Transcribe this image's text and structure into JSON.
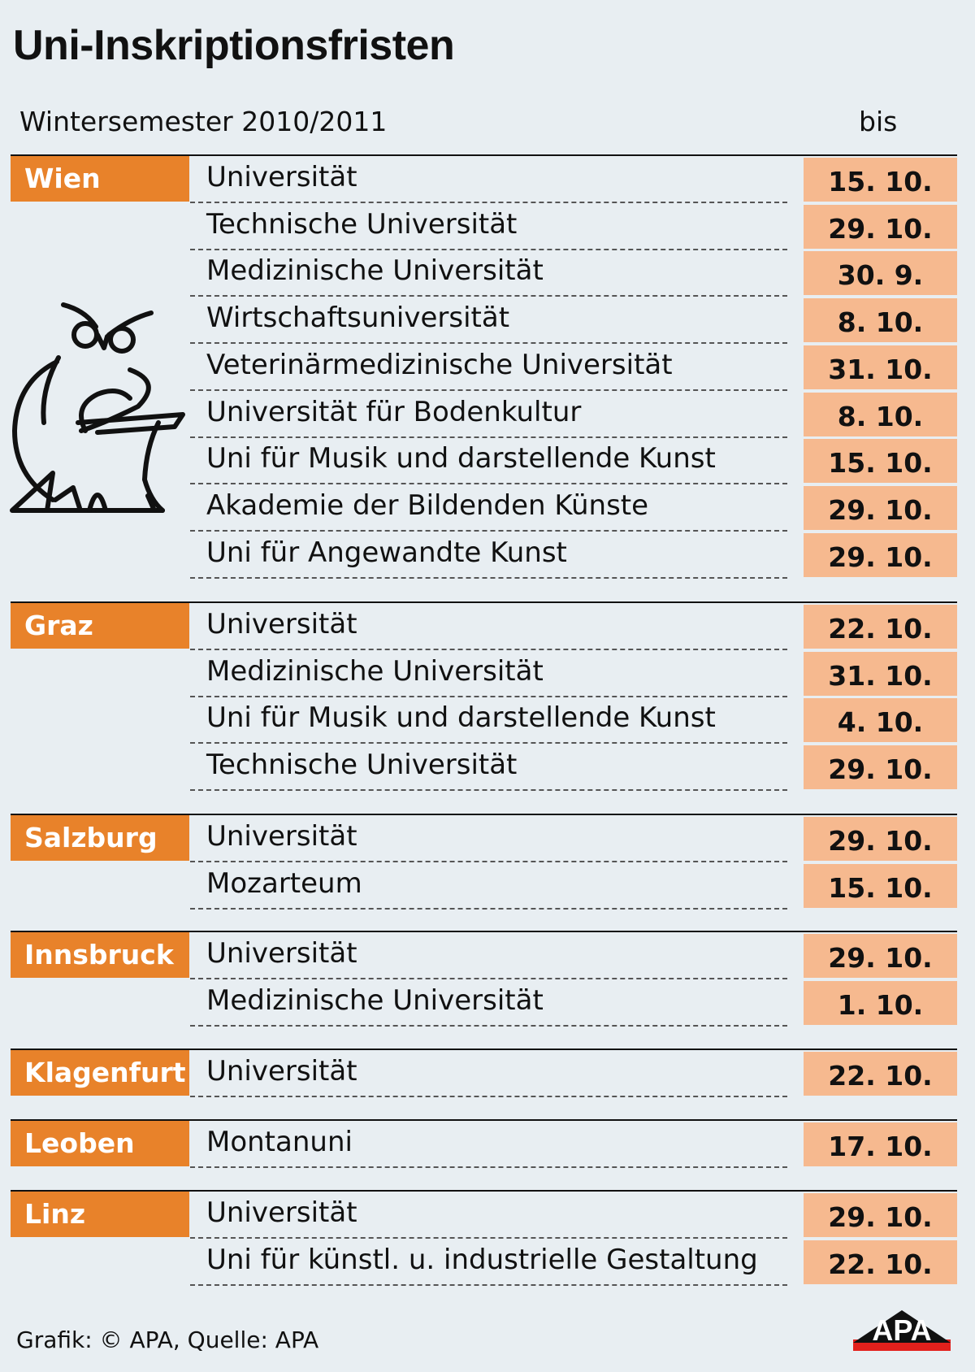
{
  "title": "Uni-Inskriptionsfristen",
  "subtitle": "Wintersemester 2010/2011",
  "deadline_label": "bis",
  "colors": {
    "city_bg": "#e8822a",
    "date_bg": "#f6b98f",
    "background": "#e8eef2"
  },
  "icon": "owl-icon",
  "groups": [
    {
      "city": "Wien",
      "rows": [
        {
          "name": "Universität",
          "date": "15. 10."
        },
        {
          "name": "Technische Universität",
          "date": "29. 10."
        },
        {
          "name": "Medizinische Universität",
          "date": "30. 9."
        },
        {
          "name": "Wirtschaftsuniversität",
          "date": "8. 10."
        },
        {
          "name": "Veterinärmedizinische Universität",
          "date": "31. 10."
        },
        {
          "name": "Universität für Bodenkultur",
          "date": "8. 10."
        },
        {
          "name": "Uni für Musik und darstellende Kunst",
          "date": "15. 10."
        },
        {
          "name": "Akademie der Bildenden Künste",
          "date": "29. 10."
        },
        {
          "name": "Uni für Angewandte Kunst",
          "date": "29. 10."
        }
      ]
    },
    {
      "city": "Graz",
      "rows": [
        {
          "name": "Universität",
          "date": "22. 10."
        },
        {
          "name": "Medizinische Universität",
          "date": "31. 10."
        },
        {
          "name": "Uni für Musik und darstellende Kunst",
          "date": "4. 10."
        },
        {
          "name": "Technische Universität",
          "date": "29. 10."
        }
      ]
    },
    {
      "city": "Salzburg",
      "rows": [
        {
          "name": "Universität",
          "date": "29. 10."
        },
        {
          "name": "Mozarteum",
          "date": "15. 10."
        }
      ]
    },
    {
      "city": "Innsbruck",
      "rows": [
        {
          "name": "Universität",
          "date": "29. 10."
        },
        {
          "name": "Medizinische Universität",
          "date": "1. 10."
        }
      ]
    },
    {
      "city": "Klagenfurt",
      "rows": [
        {
          "name": "Universität",
          "date": "22. 10."
        }
      ]
    },
    {
      "city": "Leoben",
      "rows": [
        {
          "name": "Montanuni",
          "date": "17. 10."
        }
      ]
    },
    {
      "city": "Linz",
      "rows": [
        {
          "name": "Universität",
          "date": "29. 10."
        },
        {
          "name": "Uni für künstl. u. industrielle Gestaltung",
          "date": "22. 10."
        }
      ]
    }
  ],
  "footer": "Grafik: © APA, Quelle: APA",
  "logo_text": "APA"
}
